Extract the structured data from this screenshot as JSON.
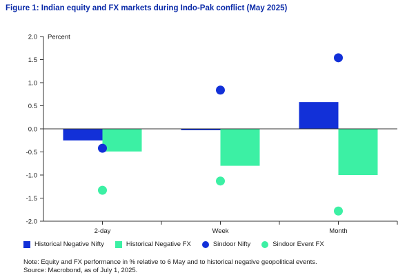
{
  "figure": {
    "title": "Figure 1: Indian equity and FX markets during Indo-Pak conflict (May 2025)",
    "note": "Note: Equity and FX performance in % relative to 6 May and to historical negative geopolitical events.",
    "source": "Source: Macrobond, as of July 1, 2025."
  },
  "chart_data": {
    "type": "bar",
    "categories": [
      "2-day",
      "Week",
      "Month"
    ],
    "ylabel": "Percent",
    "ylim": [
      -2.0,
      2.0
    ],
    "yticks": [
      "2.0",
      "1.5",
      "1.0",
      "0.5",
      "0.0",
      "-0.5",
      "-1.0",
      "-1.5",
      "-2.0"
    ],
    "grid": false,
    "legend_position": "bottom",
    "series": [
      {
        "name": "Historical Negative Nifty",
        "kind": "bar",
        "color": "#1230d8",
        "values": [
          -0.25,
          -0.03,
          0.58
        ]
      },
      {
        "name": "Historical Negative FX",
        "kind": "bar",
        "color": "#3cf0a4",
        "values": [
          -0.49,
          -0.8,
          -1.0
        ]
      },
      {
        "name": "Sindoor Nifty",
        "kind": "scatter",
        "color": "#1230d8",
        "values": [
          -0.42,
          0.84,
          1.54
        ]
      },
      {
        "name": "Sindoor Event FX",
        "kind": "scatter",
        "color": "#3cf0a4",
        "values": [
          -1.33,
          -1.13,
          -1.78
        ]
      }
    ]
  }
}
